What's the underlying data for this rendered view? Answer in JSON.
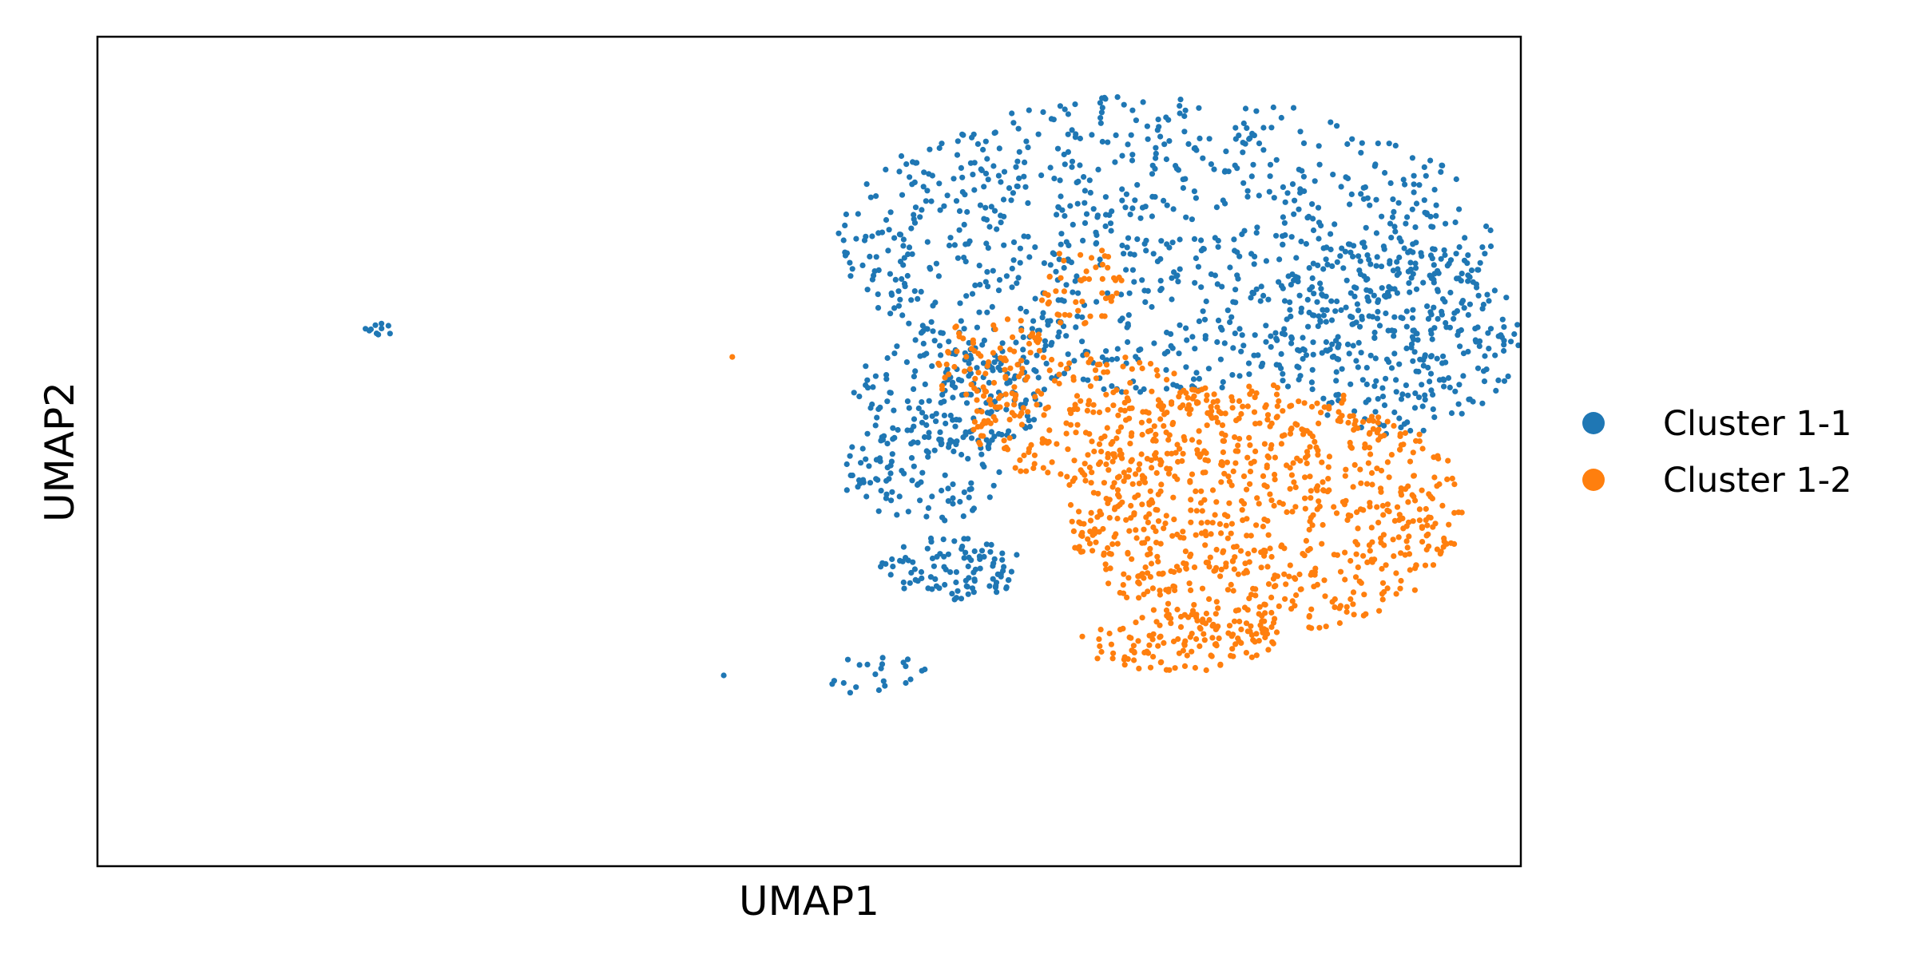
{
  "chart_data": {
    "type": "scatter",
    "title": "",
    "xlabel": "UMAP1",
    "ylabel": "UMAP2",
    "xlim": [
      0,
      100
    ],
    "ylim": [
      0,
      100
    ],
    "show_ticks": false,
    "grid": false,
    "legend": {
      "placement": "outside-right"
    },
    "series": [
      {
        "name": "Cluster 1-1",
        "color": "#1f77b4",
        "regions": [
          {
            "cx": 75,
            "cy": 75,
            "rx": 23,
            "ry": 18,
            "n": 900,
            "seed": 11
          },
          {
            "cx": 91,
            "cy": 64,
            "rx": 9,
            "ry": 12,
            "n": 320,
            "seed": 12
          },
          {
            "cx": 60,
            "cy": 57,
            "rx": 7,
            "ry": 7,
            "n": 170,
            "seed": 13
          },
          {
            "cx": 58,
            "cy": 48,
            "rx": 6,
            "ry": 7,
            "n": 110,
            "seed": 14
          },
          {
            "cx": 60,
            "cy": 36,
            "rx": 5,
            "ry": 4,
            "n": 100,
            "seed": 15
          },
          {
            "cx": 55,
            "cy": 23,
            "rx": 4,
            "ry": 2.5,
            "n": 22,
            "seed": 16
          },
          {
            "cx": 19.9,
            "cy": 64.6,
            "rx": 1.3,
            "ry": 0.9,
            "n": 10,
            "seed": 17
          }
        ],
        "points": [
          [
            44,
            23
          ]
        ]
      },
      {
        "name": "Cluster 1-2",
        "color": "#ff7f0e",
        "regions": [
          {
            "cx": 82,
            "cy": 43,
            "rx": 14,
            "ry": 15,
            "n": 820,
            "seed": 21
          },
          {
            "cx": 76,
            "cy": 27,
            "rx": 7,
            "ry": 3.5,
            "n": 120,
            "seed": 22
          },
          {
            "cx": 70,
            "cy": 54,
            "rx": 9,
            "ry": 8,
            "n": 200,
            "seed": 23
          },
          {
            "cx": 63,
            "cy": 60,
            "rx": 4,
            "ry": 7,
            "n": 90,
            "seed": 24
          },
          {
            "cx": 69,
            "cy": 70,
            "rx": 3,
            "ry": 5,
            "n": 50,
            "seed": 25
          }
        ],
        "points": [
          [
            44.6,
            61.4
          ]
        ]
      }
    ]
  }
}
